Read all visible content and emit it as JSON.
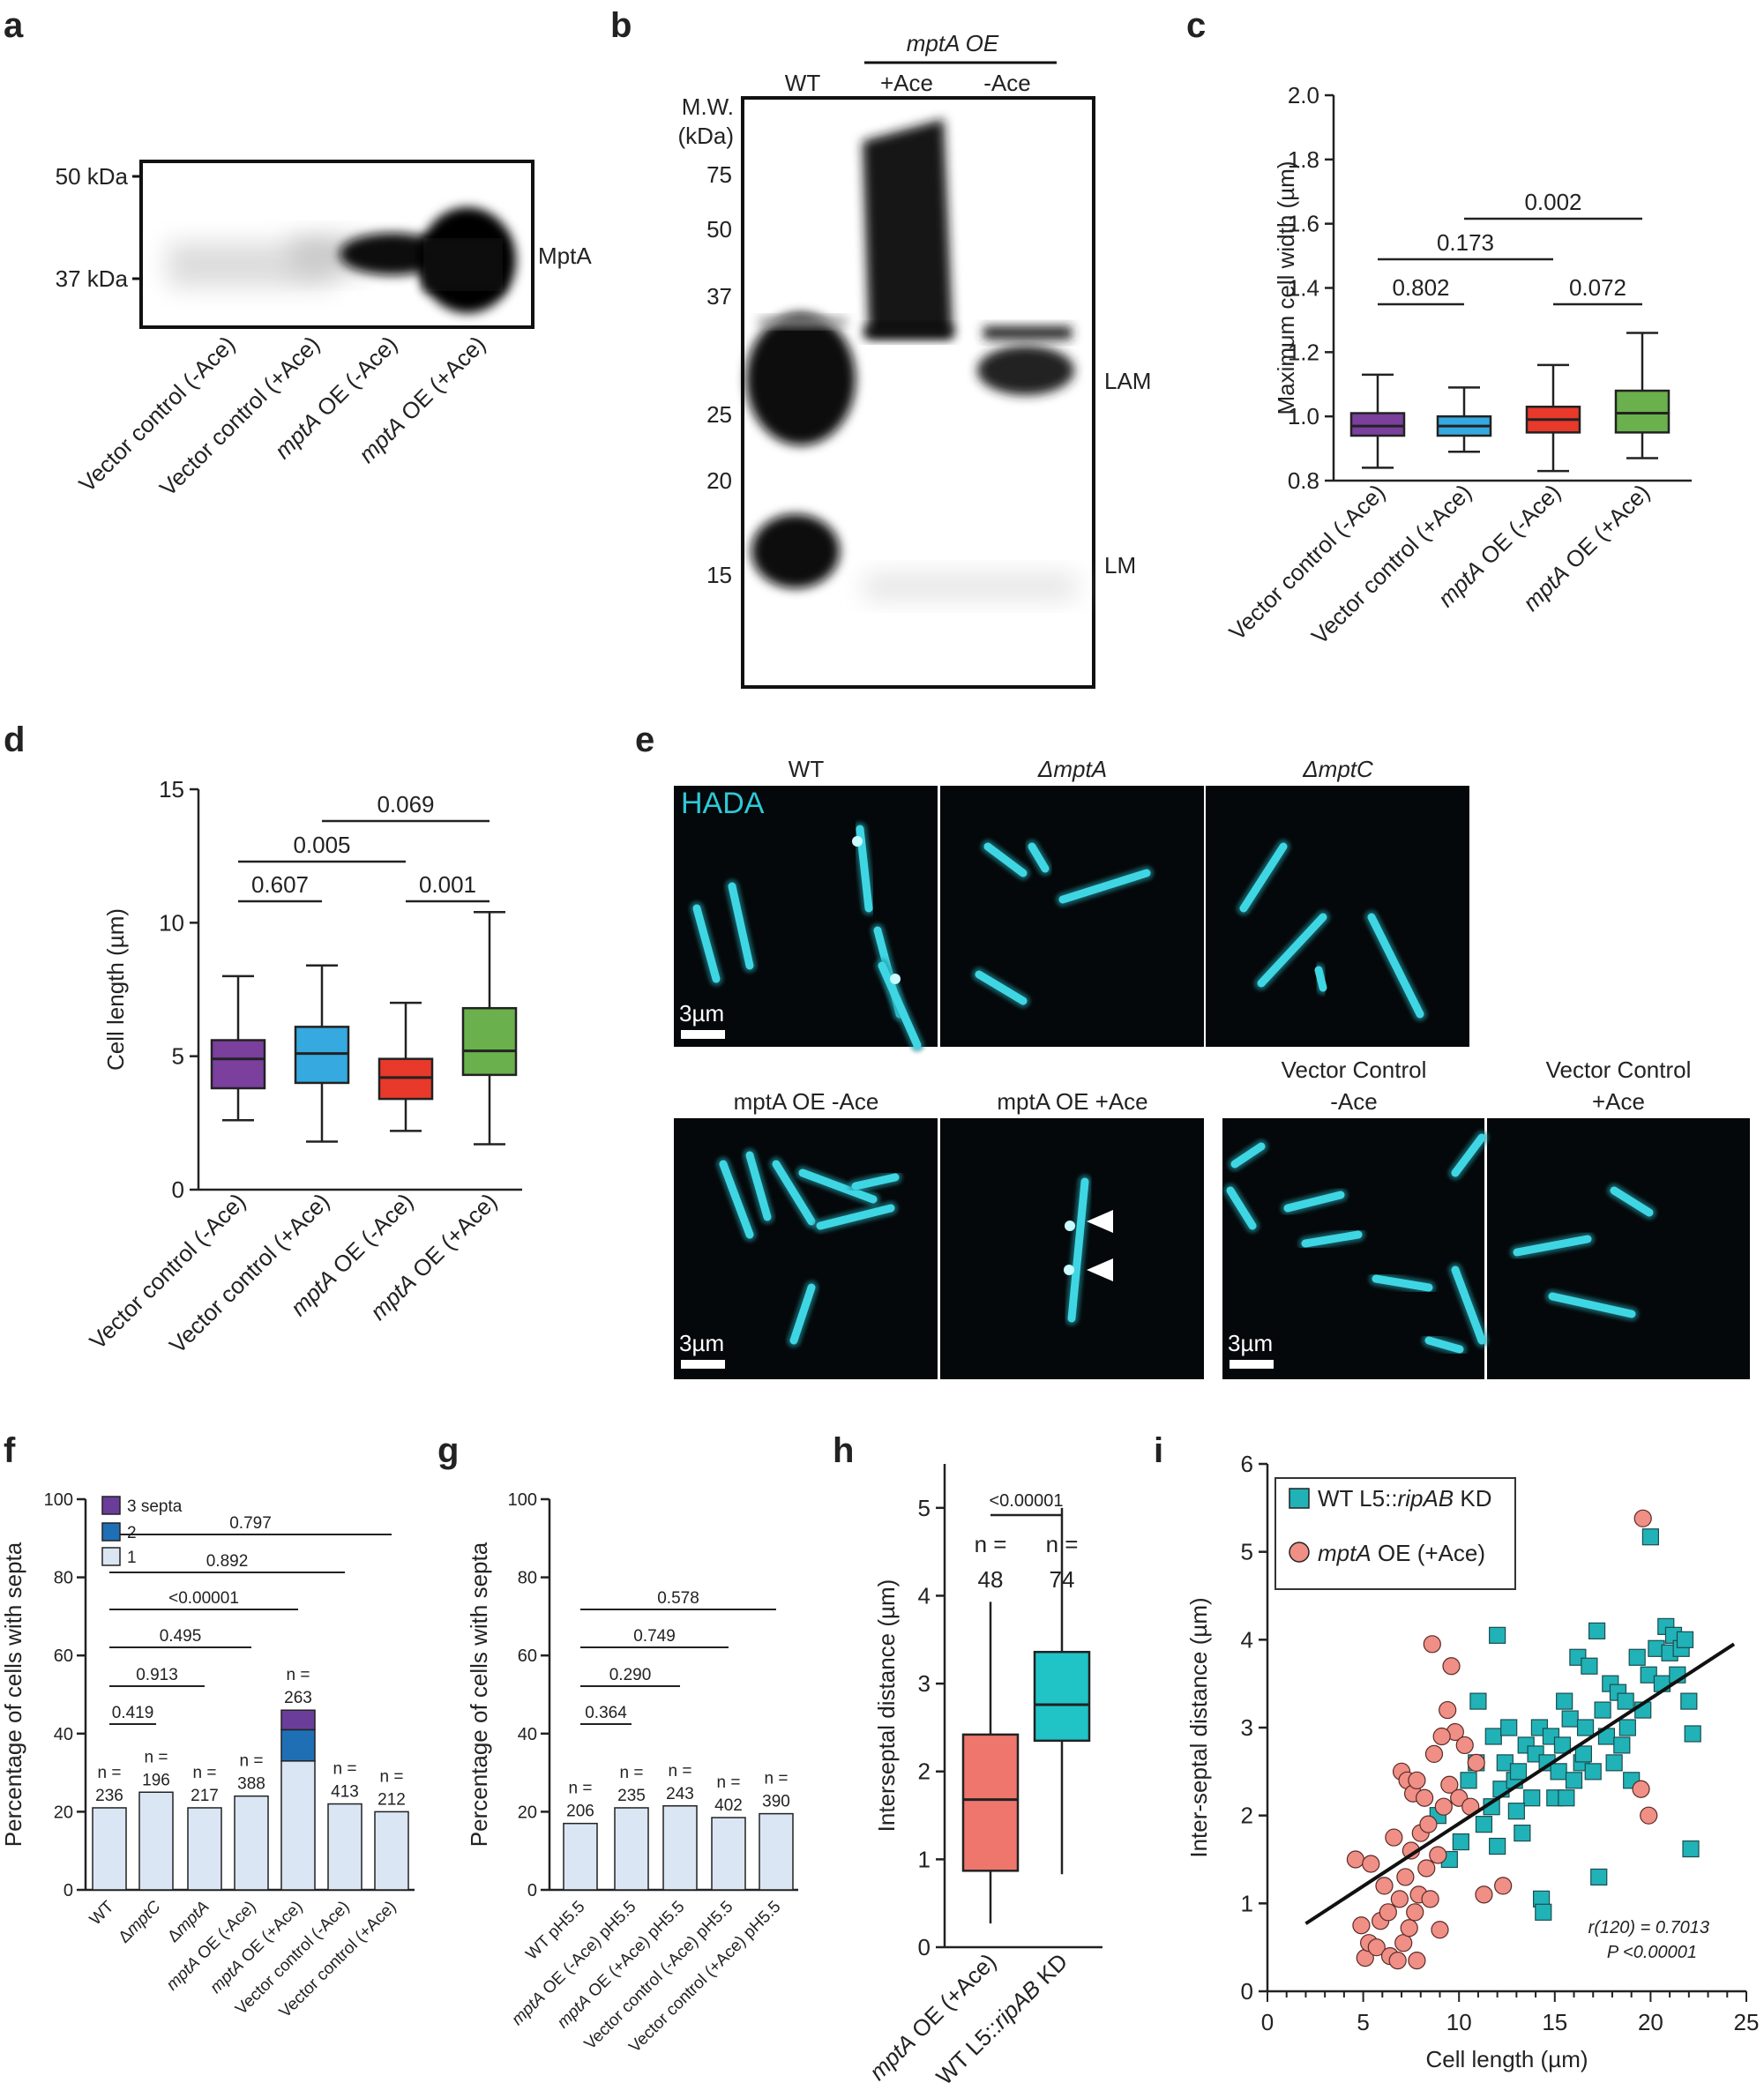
{
  "panels": {
    "a": {
      "label": "a",
      "markers": [
        "50 kDa",
        "37 kDa"
      ],
      "band_label": "MptA",
      "lanes": [
        "Vector control (-Ace)",
        "Vector control (+Ace)",
        "mptA OE (-Ace)",
        "mptA OE (+Ace)"
      ]
    },
    "b": {
      "label": "b",
      "group_label": "mptA OE",
      "lanes": [
        "WT",
        "+Ace",
        "-Ace"
      ],
      "mw_title_1": "M.W.",
      "mw_title_2": "(kDa)",
      "mw": [
        "75",
        "50",
        "37",
        "25",
        "20",
        "15"
      ],
      "band_labels": [
        "LAM",
        "LM"
      ]
    },
    "e": {
      "label": "e",
      "stain": "HADA",
      "row1": [
        "WT",
        "ΔmptA",
        "ΔmptC"
      ],
      "row2": [
        "mptA OE -Ace",
        "mptA OE +Ace"
      ],
      "row2b_1": [
        "Vector Control",
        "-Ace"
      ],
      "row2b_2": [
        "Vector Control",
        "+Ace"
      ],
      "scalebar": "3µm"
    },
    "f": {
      "label": "f",
      "legend": [
        "3 septa",
        "2",
        "1"
      ]
    },
    "g": {
      "label": "g"
    },
    "h": {
      "label": "h"
    },
    "i": {
      "label": "i",
      "stat1": "r(120) = 0.7013",
      "stat2": "P <0.00001"
    }
  },
  "chart_data": [
    {
      "panel": "c",
      "type": "box",
      "ylabel": "Maximum cell width (µm)",
      "ylim": [
        0.8,
        2.0
      ],
      "yticks": [
        "0.8",
        "1.0",
        "1.2",
        "1.4",
        "1.6",
        "1.8",
        "2.0"
      ],
      "categories": [
        "Vector control (-Ace)",
        "Vector control (+Ace)",
        "mptA OE (-Ace)",
        "mptA OE (+Ace)"
      ],
      "colors": [
        "#7b3f9e",
        "#35a9e0",
        "#e8392b",
        "#6ab04c"
      ],
      "boxes": [
        {
          "min": 0.84,
          "q1": 0.94,
          "median": 0.97,
          "q3": 1.01,
          "max": 1.13
        },
        {
          "min": 0.89,
          "q1": 0.94,
          "median": 0.97,
          "q3": 1.0,
          "max": 1.09
        },
        {
          "min": 0.83,
          "q1": 0.95,
          "median": 0.99,
          "q3": 1.03,
          "max": 1.16
        },
        {
          "min": 0.87,
          "q1": 0.95,
          "median": 1.01,
          "q3": 1.08,
          "max": 1.26
        }
      ],
      "comparisons": [
        {
          "from": 0,
          "to": 1,
          "p": "0.802"
        },
        {
          "from": 2,
          "to": 3,
          "p": "0.072"
        },
        {
          "from": 0,
          "to": 2,
          "p": "0.173"
        },
        {
          "from": 1,
          "to": 3,
          "p": "0.002"
        }
      ]
    },
    {
      "panel": "d",
      "type": "box",
      "ylabel": "Cell length (µm)",
      "ylim": [
        0,
        15
      ],
      "yticks": [
        "0",
        "5",
        "10",
        "15"
      ],
      "categories": [
        "Vector control (-Ace)",
        "Vector control (+Ace)",
        "mptA OE (-Ace)",
        "mptA OE (+Ace)"
      ],
      "colors": [
        "#7b3f9e",
        "#35a9e0",
        "#e8392b",
        "#6ab04c"
      ],
      "boxes": [
        {
          "min": 2.6,
          "q1": 3.8,
          "median": 4.9,
          "q3": 5.6,
          "max": 8.0
        },
        {
          "min": 1.8,
          "q1": 4.0,
          "median": 5.1,
          "q3": 6.1,
          "max": 8.4
        },
        {
          "min": 2.2,
          "q1": 3.4,
          "median": 4.2,
          "q3": 4.9,
          "max": 7.0
        },
        {
          "min": 1.7,
          "q1": 4.3,
          "median": 5.2,
          "q3": 6.8,
          "max": 10.4
        }
      ],
      "comparisons": [
        {
          "from": 0,
          "to": 1,
          "p": "0.607"
        },
        {
          "from": 2,
          "to": 3,
          "p": "0.001"
        },
        {
          "from": 0,
          "to": 2,
          "p": "0.005"
        },
        {
          "from": 1,
          "to": 3,
          "p": "0.069"
        }
      ]
    },
    {
      "panel": "f",
      "type": "bar",
      "stacked": true,
      "ylabel": "Percentage of cells with septa",
      "ylim": [
        0,
        100
      ],
      "yticks": [
        "0",
        "20",
        "40",
        "60",
        "80",
        "100"
      ],
      "categories": [
        "WT",
        "ΔmptC",
        "ΔmptA",
        "mptA OE (-Ace)",
        "mptA OE (+Ace)",
        "Vector control (-Ace)",
        "Vector control (+Ace)"
      ],
      "n_prefix": "n =",
      "n": [
        "236",
        "196",
        "217",
        "388",
        "263",
        "413",
        "212"
      ],
      "series": [
        {
          "name": "1",
          "color": "#dbe6f4",
          "values": [
            21,
            25,
            21,
            24,
            33,
            22,
            20
          ]
        },
        {
          "name": "2",
          "color": "#1f6fb5",
          "values": [
            0,
            0,
            0,
            0,
            8,
            0,
            0
          ]
        },
        {
          "name": "3 septa",
          "color": "#6a3d9a",
          "values": [
            0,
            0,
            0,
            0,
            5,
            0,
            0
          ]
        }
      ],
      "comparisons": [
        {
          "from": 0,
          "to": 1,
          "p": "0.419"
        },
        {
          "from": 0,
          "to": 2,
          "p": "0.913"
        },
        {
          "from": 0,
          "to": 3,
          "p": "0.495"
        },
        {
          "from": 0,
          "to": 4,
          "p": "<0.00001"
        },
        {
          "from": 0,
          "to": 5,
          "p": "0.892"
        },
        {
          "from": 0,
          "to": 6,
          "p": "0.797"
        }
      ]
    },
    {
      "panel": "g",
      "type": "bar",
      "ylabel": "Percentage of cells with septa",
      "ylim": [
        0,
        100
      ],
      "yticks": [
        "0",
        "20",
        "40",
        "60",
        "80",
        "100"
      ],
      "categories": [
        "WT pH5.5",
        "mptA OE (-Ace) pH5.5",
        "mptA OE (+Ace) pH5.5",
        "Vector control (-Ace) pH5.5",
        "Vector control (+Ace) pH5.5"
      ],
      "n_prefix": "n =",
      "n": [
        "206",
        "235",
        "243",
        "402",
        "390"
      ],
      "color": "#dbe6f4",
      "values": [
        17,
        21,
        21.5,
        18.5,
        19.5
      ],
      "comparisons": [
        {
          "from": 0,
          "to": 1,
          "p": "0.364"
        },
        {
          "from": 0,
          "to": 2,
          "p": "0.290"
        },
        {
          "from": 0,
          "to": 3,
          "p": "0.749"
        },
        {
          "from": 0,
          "to": 4,
          "p": "0.578"
        }
      ]
    },
    {
      "panel": "h",
      "type": "box",
      "ylabel": "Interseptal distance (µm)",
      "ylim": [
        0,
        5.5
      ],
      "yticks": [
        "0",
        "1",
        "2",
        "3",
        "4",
        "5"
      ],
      "categories": [
        "mptA OE (+Ace)",
        "WT L5::ripAB KD"
      ],
      "n_prefix": "n =",
      "n": [
        "48",
        "74"
      ],
      "colors": [
        "#ef766d",
        "#20c3c6"
      ],
      "boxes": [
        {
          "min": 0.27,
          "q1": 0.87,
          "median": 1.68,
          "q3": 2.42,
          "max": 3.93
        },
        {
          "min": 0.83,
          "q1": 2.35,
          "median": 2.76,
          "q3": 3.36,
          "max": 5.0
        }
      ],
      "comparisons": [
        {
          "from": 0,
          "to": 1,
          "p": "<0.00001"
        }
      ]
    },
    {
      "panel": "i",
      "type": "scatter",
      "xlabel": "Cell length (µm)",
      "ylabel": "Inter-septal distance (µm)",
      "xlim": [
        0,
        25
      ],
      "ylim": [
        0,
        6
      ],
      "xticks": [
        "0",
        "5",
        "10",
        "15",
        "20",
        "25"
      ],
      "yticks": [
        "0",
        "1",
        "2",
        "3",
        "4",
        "5",
        "6"
      ],
      "fit_line": {
        "x": [
          2,
          25
        ],
        "y": [
          0.77,
          4.02
        ]
      },
      "series": [
        {
          "name": "WT L5::ripAB KD",
          "color": "#20b2b6",
          "marker": "square",
          "points": [
            [
              10.5,
              2.4
            ],
            [
              10.9,
              2.6
            ],
            [
              11.3,
              1.9
            ],
            [
              11.7,
              2.1
            ],
            [
              11.8,
              2.9
            ],
            [
              12.0,
              4.05
            ],
            [
              12.2,
              2.3
            ],
            [
              12.4,
              2.6
            ],
            [
              12.6,
              3.0
            ],
            [
              12.9,
              2.4
            ],
            [
              13.1,
              2.5
            ],
            [
              13.3,
              1.8
            ],
            [
              13.5,
              2.8
            ],
            [
              13.8,
              2.2
            ],
            [
              14.0,
              2.7
            ],
            [
              14.2,
              3.0
            ],
            [
              14.3,
              1.05
            ],
            [
              14.4,
              0.9
            ],
            [
              14.6,
              2.6
            ],
            [
              14.8,
              2.9
            ],
            [
              15.0,
              2.2
            ],
            [
              15.2,
              2.5
            ],
            [
              15.4,
              2.8
            ],
            [
              15.6,
              2.2
            ],
            [
              15.8,
              3.1
            ],
            [
              16.0,
              2.4
            ],
            [
              16.2,
              3.8
            ],
            [
              16.4,
              2.6
            ],
            [
              16.6,
              3.0
            ],
            [
              16.8,
              3.7
            ],
            [
              17.0,
              2.5
            ],
            [
              17.2,
              4.1
            ],
            [
              17.3,
              1.3
            ],
            [
              17.5,
              3.2
            ],
            [
              17.7,
              2.9
            ],
            [
              17.9,
              3.5
            ],
            [
              18.1,
              2.6
            ],
            [
              18.3,
              3.4
            ],
            [
              18.5,
              2.8
            ],
            [
              18.8,
              3.0
            ],
            [
              19.0,
              2.4
            ],
            [
              19.3,
              3.8
            ],
            [
              19.6,
              3.2
            ],
            [
              19.9,
              3.6
            ],
            [
              20.0,
              5.17
            ],
            [
              20.3,
              3.9
            ],
            [
              20.6,
              3.5
            ],
            [
              20.8,
              4.15
            ],
            [
              21.0,
              3.85
            ],
            [
              21.2,
              4.05
            ],
            [
              21.4,
              3.6
            ],
            [
              21.6,
              3.9
            ],
            [
              21.8,
              4.0
            ],
            [
              22.0,
              3.3
            ],
            [
              22.1,
              1.62
            ],
            [
              22.2,
              2.93
            ],
            [
              9.5,
              1.5
            ],
            [
              10.1,
              1.7
            ],
            [
              8.9,
              2.0
            ],
            [
              11.0,
              3.3
            ],
            [
              12.0,
              1.65
            ],
            [
              13.0,
              2.05
            ],
            [
              15.5,
              3.3
            ],
            [
              16.5,
              2.7
            ],
            [
              18.7,
              3.3
            ]
          ]
        },
        {
          "name": "mptA OE (+Ace)",
          "color": "#ef8f86",
          "marker": "circle",
          "points": [
            [
              4.6,
              1.5
            ],
            [
              4.9,
              0.75
            ],
            [
              5.1,
              0.38
            ],
            [
              5.3,
              0.55
            ],
            [
              5.4,
              1.45
            ],
            [
              5.7,
              0.5
            ],
            [
              5.9,
              0.8
            ],
            [
              6.1,
              1.2
            ],
            [
              6.3,
              0.9
            ],
            [
              6.4,
              0.4
            ],
            [
              6.6,
              1.75
            ],
            [
              6.8,
              0.35
            ],
            [
              6.9,
              1.05
            ],
            [
              7.0,
              2.5
            ],
            [
              7.1,
              0.55
            ],
            [
              7.2,
              1.3
            ],
            [
              7.3,
              2.4
            ],
            [
              7.4,
              0.72
            ],
            [
              7.5,
              1.6
            ],
            [
              7.6,
              2.25
            ],
            [
              7.7,
              0.9
            ],
            [
              7.8,
              0.35
            ],
            [
              7.9,
              1.1
            ],
            [
              8.0,
              1.8
            ],
            [
              8.2,
              2.2
            ],
            [
              8.3,
              1.4
            ],
            [
              8.5,
              1.05
            ],
            [
              8.6,
              3.95
            ],
            [
              8.7,
              2.7
            ],
            [
              8.9,
              1.55
            ],
            [
              9.0,
              0.7
            ],
            [
              9.2,
              2.1
            ],
            [
              9.4,
              3.2
            ],
            [
              9.5,
              2.35
            ],
            [
              9.6,
              3.7
            ],
            [
              9.8,
              2.95
            ],
            [
              10.0,
              2.2
            ],
            [
              10.3,
              2.8
            ],
            [
              10.6,
              2.1
            ],
            [
              10.9,
              2.6
            ],
            [
              11.3,
              1.1
            ],
            [
              12.3,
              1.2
            ],
            [
              19.6,
              5.38
            ],
            [
              19.5,
              2.3
            ],
            [
              19.9,
              2.0
            ],
            [
              7.8,
              2.4
            ],
            [
              9.1,
              2.9
            ],
            [
              8.4,
              1.9
            ]
          ]
        }
      ]
    }
  ]
}
